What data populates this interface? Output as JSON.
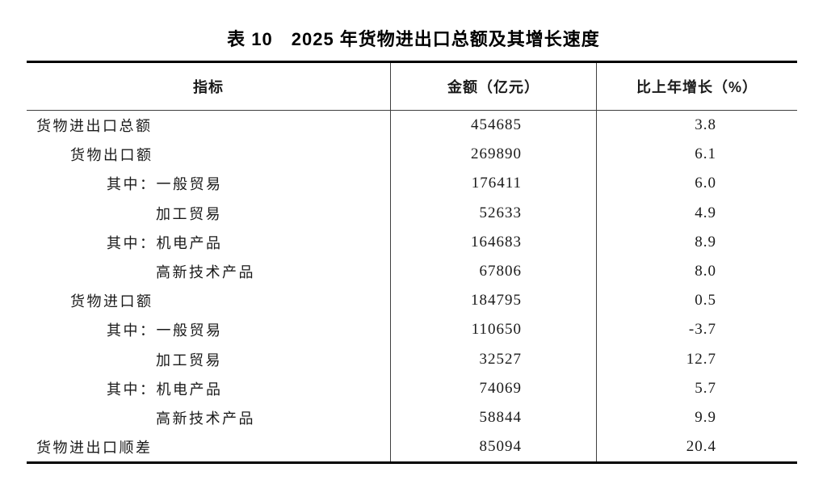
{
  "title": "表 10　2025 年货物进出口总额及其增长速度",
  "table": {
    "columns": {
      "indicator": "指标",
      "amount": "金额（亿元）",
      "growth": "比上年增长（%）"
    },
    "rows": [
      {
        "label": "货物进出口总额",
        "amount": "454685",
        "growth": "3.8"
      },
      {
        "label": "货物出口额",
        "amount": "269890",
        "growth": "6.1"
      },
      {
        "label": "其中：一般贸易",
        "amount": "176411",
        "growth": "6.0"
      },
      {
        "label": "加工贸易",
        "amount": "52633",
        "growth": "4.9"
      },
      {
        "label": "其中：机电产品",
        "amount": "164683",
        "growth": "8.9"
      },
      {
        "label": "高新技术产品",
        "amount": "67806",
        "growth": "8.0"
      },
      {
        "label": "货物进口额",
        "amount": "184795",
        "growth": "0.5"
      },
      {
        "label": "其中：一般贸易",
        "amount": "110650",
        "growth": "-3.7"
      },
      {
        "label": "加工贸易",
        "amount": "32527",
        "growth": "12.7"
      },
      {
        "label": "其中：机电产品",
        "amount": "74069",
        "growth": "5.7"
      },
      {
        "label": "高新技术产品",
        "amount": "58844",
        "growth": "9.9"
      },
      {
        "label": "货物进出口顺差",
        "amount": "85094",
        "growth": "20.4"
      }
    ]
  },
  "colors": {
    "text": "#1a1a1a",
    "border_heavy": "#000000",
    "border_light": "#3f3f3f",
    "background": "#ffffff"
  }
}
